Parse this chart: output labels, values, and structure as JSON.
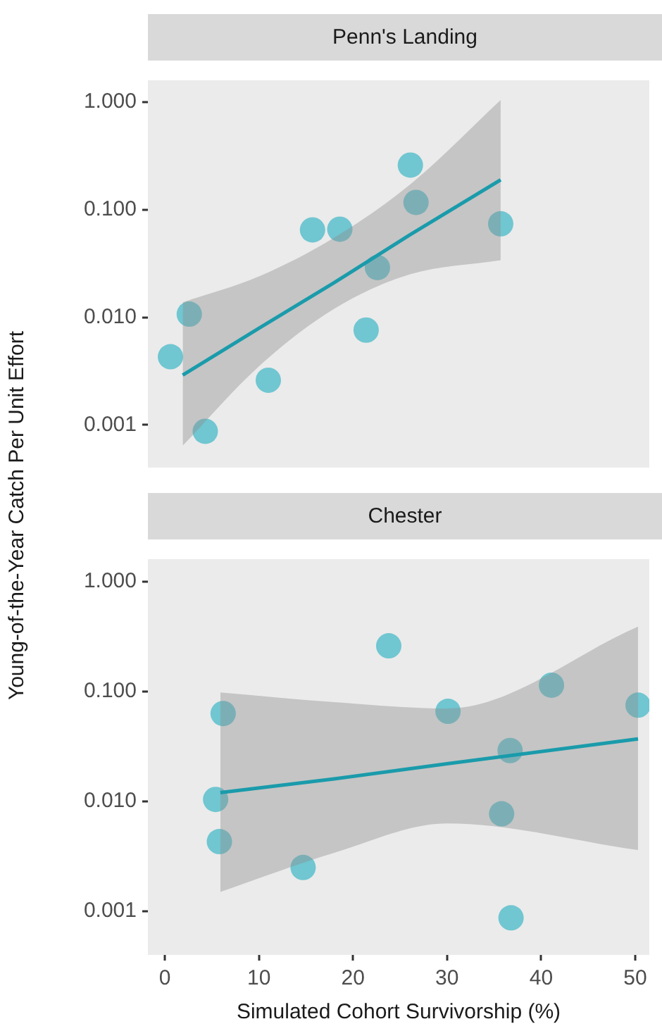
{
  "chart_data": [
    {
      "type": "scatter",
      "title": "Penn's Landing",
      "ylabel": "Young-of-the-Year Catch Per Unit Effort",
      "log": "y",
      "xlim": [
        -1.8,
        51.5
      ],
      "ylim": [
        0.0004,
        1.6
      ],
      "yticks": [
        {
          "value": 0.001,
          "label": "0.001"
        },
        {
          "value": 0.01,
          "label": "0.010"
        },
        {
          "value": 0.1,
          "label": "0.100"
        },
        {
          "value": 1,
          "label": "1.000"
        }
      ],
      "tick_labels": "y",
      "grid": false,
      "legend": false,
      "marker": "circle",
      "series": [
        {
          "type": "scatter",
          "color": "#5bbfcc",
          "x": [
            0.6,
            2.6,
            4.3,
            11.0,
            15.7,
            18.6,
            21.4,
            22.6,
            26.1,
            26.7,
            35.7
          ],
          "values": [
            0.0043,
            0.0107,
            0.00087,
            0.0026,
            0.065,
            0.066,
            0.0076,
            0.029,
            0.26,
            0.117,
            0.074
          ]
        },
        {
          "type": "line",
          "color": "#1a9bab",
          "line_style": "solid",
          "marker": "none",
          "x": [
            1.9,
            10,
            18,
            26,
            35.7
          ],
          "values": [
            0.0029,
            0.0079,
            0.021,
            0.058,
            0.19
          ],
          "lower": [
            0.00064,
            0.0035,
            0.012,
            0.025,
            0.034
          ],
          "upper": [
            0.0138,
            0.024,
            0.055,
            0.17,
            1.05
          ]
        }
      ]
    },
    {
      "type": "scatter",
      "title": "Chester",
      "xlabel": "Simulated Cohort Survivorship (%)",
      "log": "y",
      "xlim": [
        -1.8,
        51.5
      ],
      "xticks": [
        0,
        10,
        20,
        30,
        40,
        50
      ],
      "ylim": [
        0.0004,
        1.6
      ],
      "yticks": [
        {
          "value": 0.001,
          "label": "0.001"
        },
        {
          "value": 0.01,
          "label": "0.010"
        },
        {
          "value": 0.1,
          "label": "0.100"
        },
        {
          "value": 1,
          "label": "1.000"
        }
      ],
      "grid": false,
      "legend": false,
      "marker": "circle",
      "series": [
        {
          "type": "scatter",
          "color": "#5bbfcc",
          "x": [
            5.4,
            6.2,
            5.8,
            14.7,
            23.8,
            30.1,
            36.7,
            35.8,
            36.8,
            41.1,
            50.3
          ],
          "values": [
            0.0104,
            0.063,
            0.0043,
            0.0025,
            0.26,
            0.066,
            0.029,
            0.0077,
            0.00087,
            0.114,
            0.075
          ]
        },
        {
          "type": "line",
          "color": "#1a9bab",
          "line_style": "solid",
          "marker": "none",
          "x": [
            5.9,
            18,
            30,
            50.3
          ],
          "values": [
            0.012,
            0.016,
            0.022,
            0.037
          ],
          "lower": [
            0.0015,
            0.0034,
            0.0063,
            0.0036
          ],
          "upper": [
            0.098,
            0.08,
            0.07,
            0.39
          ]
        }
      ]
    }
  ]
}
